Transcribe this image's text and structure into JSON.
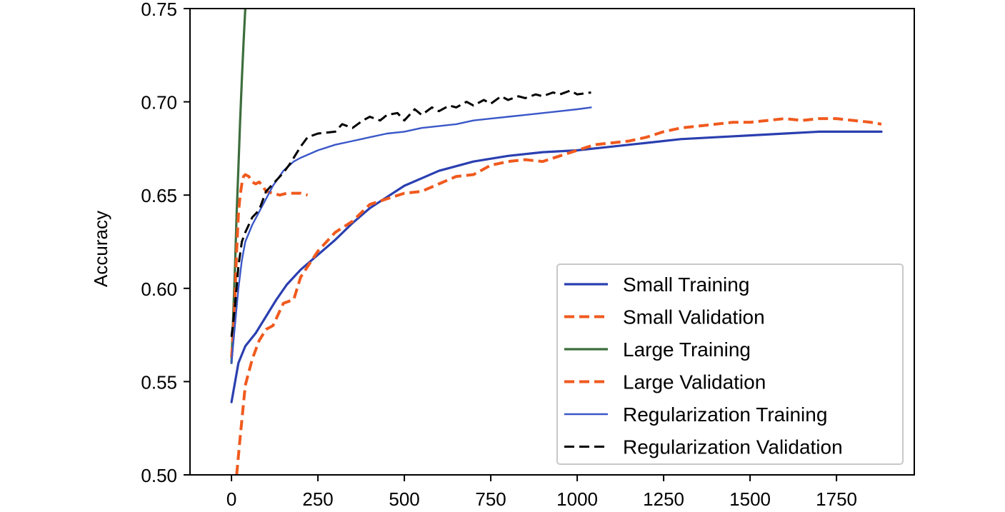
{
  "chart_data": {
    "type": "line",
    "title": "",
    "xlabel": "",
    "ylabel": "Accuracy",
    "xlim": [
      -120,
      1975
    ],
    "ylim": [
      0.5,
      0.75
    ],
    "xticks": [
      0,
      250,
      500,
      750,
      1000,
      1250,
      1500,
      1750
    ],
    "xtick_labels": [
      "0",
      "250",
      "500",
      "750",
      "1000",
      "1250",
      "1500",
      "1750"
    ],
    "yticks": [
      0.5,
      0.55,
      0.6,
      0.65,
      0.7,
      0.75
    ],
    "ytick_labels": [
      "0.50",
      "0.55",
      "0.60",
      "0.65",
      "0.70",
      "0.75"
    ],
    "grid": false,
    "legend_position": "lower-right",
    "series": [
      {
        "name": "Small Training",
        "color": "#2a3fb0",
        "style": "solid",
        "width": 3.2,
        "x": [
          0,
          20,
          40,
          70,
          100,
          130,
          160,
          200,
          250,
          300,
          350,
          400,
          450,
          500,
          550,
          600,
          700,
          800,
          900,
          1000,
          1100,
          1200,
          1300,
          1400,
          1500,
          1600,
          1700,
          1800,
          1880
        ],
        "y": [
          0.539,
          0.56,
          0.569,
          0.576,
          0.585,
          0.594,
          0.602,
          0.61,
          0.618,
          0.626,
          0.635,
          0.643,
          0.649,
          0.655,
          0.659,
          0.663,
          0.668,
          0.671,
          0.673,
          0.674,
          0.676,
          0.678,
          0.68,
          0.681,
          0.682,
          0.683,
          0.684,
          0.684,
          0.684
        ]
      },
      {
        "name": "Small Validation",
        "color": "#f05a1e",
        "style": "dashed",
        "width": 4,
        "x": [
          15,
          25,
          40,
          60,
          80,
          100,
          120,
          150,
          180,
          200,
          250,
          300,
          350,
          400,
          450,
          500,
          550,
          600,
          650,
          700,
          750,
          800,
          850,
          900,
          950,
          1000,
          1050,
          1100,
          1150,
          1200,
          1250,
          1300,
          1350,
          1400,
          1450,
          1500,
          1550,
          1600,
          1650,
          1700,
          1750,
          1800,
          1850,
          1880
        ],
        "y": [
          0.5,
          0.52,
          0.548,
          0.562,
          0.572,
          0.578,
          0.58,
          0.592,
          0.594,
          0.606,
          0.62,
          0.63,
          0.636,
          0.645,
          0.648,
          0.651,
          0.652,
          0.656,
          0.66,
          0.661,
          0.666,
          0.668,
          0.669,
          0.668,
          0.671,
          0.674,
          0.677,
          0.678,
          0.679,
          0.681,
          0.684,
          0.686,
          0.687,
          0.688,
          0.689,
          0.689,
          0.69,
          0.691,
          0.69,
          0.691,
          0.691,
          0.69,
          0.689,
          0.688
        ]
      },
      {
        "name": "Large Training",
        "color": "#3d6e3d",
        "style": "solid",
        "width": 3.2,
        "x": [
          0,
          5,
          10,
          15,
          20,
          25,
          30,
          35,
          40
        ],
        "y": [
          0.56,
          0.585,
          0.61,
          0.64,
          0.665,
          0.69,
          0.712,
          0.732,
          0.75
        ]
      },
      {
        "name": "Large Validation",
        "color": "#f05a1e",
        "style": "dashed",
        "width": 4,
        "x": [
          0,
          5,
          10,
          15,
          20,
          25,
          30,
          35,
          40,
          50,
          60,
          70,
          80,
          90,
          100,
          120,
          140,
          160,
          180,
          200,
          220
        ],
        "y": [
          0.563,
          0.575,
          0.595,
          0.62,
          0.64,
          0.65,
          0.656,
          0.66,
          0.661,
          0.66,
          0.657,
          0.656,
          0.657,
          0.655,
          0.652,
          0.651,
          0.65,
          0.651,
          0.651,
          0.651,
          0.65
        ]
      },
      {
        "name": "Regularization Training",
        "color": "#3a57c8",
        "style": "solid",
        "width": 2.4,
        "x": [
          0,
          10,
          20,
          30,
          40,
          60,
          80,
          100,
          120,
          150,
          180,
          200,
          250,
          300,
          350,
          400,
          450,
          500,
          550,
          600,
          650,
          700,
          750,
          800,
          850,
          900,
          950,
          1000,
          1040
        ],
        "y": [
          0.56,
          0.58,
          0.6,
          0.615,
          0.625,
          0.634,
          0.641,
          0.648,
          0.655,
          0.663,
          0.668,
          0.67,
          0.674,
          0.677,
          0.679,
          0.681,
          0.683,
          0.684,
          0.686,
          0.687,
          0.688,
          0.69,
          0.691,
          0.692,
          0.693,
          0.694,
          0.695,
          0.696,
          0.697
        ]
      },
      {
        "name": "Regularization Validation",
        "color": "#000000",
        "style": "dashed",
        "width": 3,
        "x": [
          0,
          10,
          20,
          30,
          40,
          60,
          80,
          100,
          120,
          150,
          170,
          200,
          220,
          250,
          300,
          320,
          350,
          380,
          400,
          430,
          450,
          480,
          500,
          530,
          550,
          580,
          600,
          630,
          650,
          680,
          700,
          730,
          750,
          780,
          800,
          830,
          850,
          880,
          900,
          930,
          950,
          980,
          1000,
          1040
        ],
        "y": [
          0.574,
          0.59,
          0.612,
          0.625,
          0.63,
          0.638,
          0.642,
          0.652,
          0.656,
          0.662,
          0.667,
          0.676,
          0.681,
          0.683,
          0.684,
          0.688,
          0.686,
          0.69,
          0.692,
          0.69,
          0.693,
          0.694,
          0.69,
          0.696,
          0.693,
          0.697,
          0.695,
          0.698,
          0.697,
          0.7,
          0.698,
          0.701,
          0.699,
          0.703,
          0.701,
          0.703,
          0.702,
          0.704,
          0.703,
          0.705,
          0.704,
          0.706,
          0.704,
          0.705
        ]
      }
    ]
  }
}
